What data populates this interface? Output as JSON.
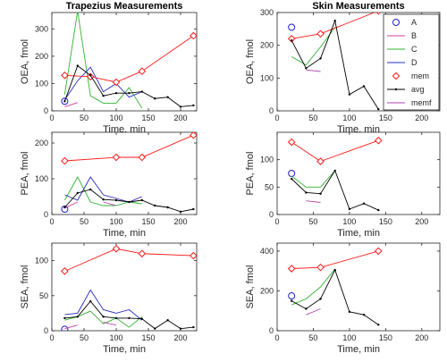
{
  "colors": {
    "A": "#1f1fcc",
    "B": "#cc3d99",
    "C": "#33b033",
    "D": "#2a2abf",
    "mem": "#ff1a1a",
    "avg": "#000000",
    "memf": "#b344b3",
    "axis": "#262626"
  },
  "legend": {
    "placement": "top-right of Skin OEA panel",
    "entries": [
      "A",
      "B",
      "C",
      "D",
      "mem",
      "avg",
      "memf"
    ]
  },
  "chart_data": [
    {
      "id": "trap-oea",
      "type": "line",
      "title": "Trapezius Measurements",
      "xlabel": "Time, min",
      "ylabel": "OEA, fmol",
      "xlim": [
        0,
        225
      ],
      "xticks": [
        0,
        50,
        100,
        150,
        200
      ],
      "ylim": [
        0,
        360
      ],
      "yticks": [
        0,
        100,
        200,
        300
      ],
      "series": [
        {
          "name": "A",
          "style": "circle",
          "x": [
            20
          ],
          "y": [
            35
          ]
        },
        {
          "name": "B",
          "style": "line",
          "x": [
            20,
            40
          ],
          "y": [
            15,
            30
          ]
        },
        {
          "name": "C",
          "style": "line",
          "x": [
            20,
            40,
            60,
            80,
            100,
            120,
            140
          ],
          "y": [
            60,
            365,
            55,
            28,
            28,
            85,
            10
          ]
        },
        {
          "name": "D",
          "style": "line",
          "x": [
            20,
            40,
            60,
            80,
            100,
            120,
            140
          ],
          "y": [
            40,
            110,
            160,
            70,
            100,
            50,
            70
          ]
        },
        {
          "name": "mem",
          "style": "diamond-line",
          "x": [
            20,
            60,
            100,
            140,
            220
          ],
          "y": [
            130,
            125,
            105,
            145,
            275
          ]
        },
        {
          "name": "avg",
          "style": "dot-line",
          "x": [
            20,
            40,
            60,
            80,
            100,
            120,
            140,
            160,
            180,
            200,
            220
          ],
          "y": [
            35,
            165,
            130,
            55,
            65,
            65,
            70,
            45,
            50,
            15,
            20
          ]
        },
        {
          "name": "memf",
          "style": "line",
          "x": [],
          "y": []
        }
      ]
    },
    {
      "id": "skin-oea",
      "type": "line",
      "title": "Skin Measurements",
      "xlabel": "Time, min",
      "ylabel": "OEA, fmol",
      "xlim": [
        0,
        225
      ],
      "xticks": [
        0,
        50,
        100,
        150,
        200
      ],
      "ylim": [
        0,
        300
      ],
      "yticks": [
        0,
        100,
        200,
        300
      ],
      "series": [
        {
          "name": "A",
          "style": "circle",
          "x": [
            20
          ],
          "y": [
            255
          ]
        },
        {
          "name": "B",
          "style": "line",
          "x": [],
          "y": []
        },
        {
          "name": "C",
          "style": "line",
          "x": [
            20,
            40,
            60,
            80
          ],
          "y": [
            165,
            140,
            195,
            255
          ]
        },
        {
          "name": "D",
          "style": "line",
          "x": [],
          "y": []
        },
        {
          "name": "mem",
          "style": "diamond-line",
          "x": [
            20,
            60,
            140
          ],
          "y": [
            220,
            235,
            305
          ]
        },
        {
          "name": "avg",
          "style": "dot-line",
          "x": [
            20,
            40,
            60,
            80,
            100,
            120,
            140
          ],
          "y": [
            215,
            130,
            160,
            275,
            50,
            75,
            5
          ]
        },
        {
          "name": "memf",
          "style": "line",
          "x": [
            40,
            60
          ],
          "y": [
            125,
            120
          ]
        }
      ]
    },
    {
      "id": "trap-pea",
      "type": "line",
      "xlabel": "Time, min",
      "ylabel": "PEA, fmol",
      "xlim": [
        0,
        225
      ],
      "xticks": [
        0,
        50,
        100,
        150,
        200
      ],
      "ylim": [
        0,
        230
      ],
      "yticks": [
        0,
        100,
        200
      ],
      "series": [
        {
          "name": "A",
          "style": "circle",
          "x": [
            20
          ],
          "y": [
            15
          ]
        },
        {
          "name": "B",
          "style": "line",
          "x": [
            20,
            40
          ],
          "y": [
            18,
            35
          ]
        },
        {
          "name": "C",
          "style": "line",
          "x": [
            20,
            40,
            60,
            80,
            100,
            120,
            140
          ],
          "y": [
            40,
            105,
            35,
            25,
            25,
            35,
            30
          ]
        },
        {
          "name": "D",
          "style": "line",
          "x": [
            20,
            40,
            60,
            80,
            100,
            120,
            140
          ],
          "y": [
            55,
            40,
            105,
            55,
            45,
            35,
            50
          ]
        },
        {
          "name": "mem",
          "style": "diamond-line",
          "x": [
            20,
            100,
            140,
            220
          ],
          "y": [
            150,
            160,
            160,
            222
          ]
        },
        {
          "name": "avg",
          "style": "dot-line",
          "x": [
            20,
            40,
            60,
            80,
            100,
            120,
            140,
            160,
            180,
            200,
            220
          ],
          "y": [
            20,
            60,
            70,
            42,
            40,
            35,
            40,
            25,
            20,
            8,
            15
          ]
        },
        {
          "name": "memf",
          "style": "line",
          "x": [
            80,
            100
          ],
          "y": [
            35,
            25
          ]
        }
      ]
    },
    {
      "id": "skin-pea",
      "type": "line",
      "xlabel": "Time, min",
      "ylabel": "PEA, fmol",
      "xlim": [
        0,
        225
      ],
      "xticks": [
        0,
        50,
        100,
        150,
        200
      ],
      "ylim": [
        0,
        150
      ],
      "yticks": [
        0,
        50,
        100
      ],
      "series": [
        {
          "name": "A",
          "style": "circle",
          "x": [
            20
          ],
          "y": [
            75
          ]
        },
        {
          "name": "B",
          "style": "line",
          "x": [],
          "y": []
        },
        {
          "name": "C",
          "style": "line",
          "x": [
            20,
            40,
            60,
            80
          ],
          "y": [
            70,
            50,
            50,
            80
          ]
        },
        {
          "name": "D",
          "style": "line",
          "x": [],
          "y": []
        },
        {
          "name": "mem",
          "style": "diamond-line",
          "x": [
            20,
            60,
            140
          ],
          "y": [
            132,
            97,
            135
          ]
        },
        {
          "name": "avg",
          "style": "dot-line",
          "x": [
            20,
            40,
            60,
            80,
            100,
            120,
            140
          ],
          "y": [
            65,
            40,
            38,
            80,
            10,
            20,
            8
          ]
        },
        {
          "name": "memf",
          "style": "line",
          "x": [
            40,
            60
          ],
          "y": [
            25,
            22
          ]
        }
      ]
    },
    {
      "id": "trap-sea",
      "type": "line",
      "xlabel": "Time, min",
      "ylabel": "SEA, fmol",
      "xlim": [
        0,
        225
      ],
      "xticks": [
        0,
        50,
        100,
        150,
        200
      ],
      "ylim": [
        0,
        125
      ],
      "yticks": [
        0,
        50,
        100
      ],
      "series": [
        {
          "name": "A",
          "style": "circle",
          "x": [
            20
          ],
          "y": [
            2
          ]
        },
        {
          "name": "B",
          "style": "line",
          "x": [
            20,
            40
          ],
          "y": [
            3,
            8
          ]
        },
        {
          "name": "C",
          "style": "line",
          "x": [
            20,
            40,
            60,
            80,
            100,
            120,
            140
          ],
          "y": [
            15,
            20,
            28,
            10,
            18,
            5,
            20
          ]
        },
        {
          "name": "D",
          "style": "line",
          "x": [
            20,
            40,
            60,
            80,
            100,
            120,
            140
          ],
          "y": [
            23,
            25,
            58,
            30,
            25,
            30,
            15
          ]
        },
        {
          "name": "mem",
          "style": "diamond-line",
          "x": [
            20,
            100,
            140,
            220
          ],
          "y": [
            85,
            117,
            110,
            107
          ]
        },
        {
          "name": "avg",
          "style": "dot-line",
          "x": [
            20,
            40,
            60,
            80,
            100,
            120,
            140,
            160,
            180,
            200,
            220
          ],
          "y": [
            18,
            20,
            42,
            20,
            18,
            18,
            17,
            3,
            15,
            3,
            5
          ]
        },
        {
          "name": "memf",
          "style": "line",
          "x": [
            80,
            100
          ],
          "y": [
            12,
            8
          ]
        }
      ]
    },
    {
      "id": "skin-sea",
      "type": "line",
      "xlabel": "Time, min",
      "ylabel": "SEA, fmol",
      "xlim": [
        0,
        225
      ],
      "xticks": [
        0,
        50,
        100,
        150,
        200
      ],
      "ylim": [
        0,
        440
      ],
      "yticks": [
        0,
        200,
        400
      ],
      "series": [
        {
          "name": "A",
          "style": "circle",
          "x": [
            20
          ],
          "y": [
            175
          ]
        },
        {
          "name": "B",
          "style": "line",
          "x": [],
          "y": []
        },
        {
          "name": "C",
          "style": "line",
          "x": [
            20,
            40,
            60,
            80
          ],
          "y": [
            130,
            160,
            220,
            310
          ]
        },
        {
          "name": "D",
          "style": "line",
          "x": [],
          "y": []
        },
        {
          "name": "mem",
          "style": "diamond-line",
          "x": [
            20,
            60,
            140
          ],
          "y": [
            312,
            318,
            400
          ]
        },
        {
          "name": "avg",
          "style": "dot-line",
          "x": [
            20,
            40,
            60,
            80,
            100,
            120,
            140
          ],
          "y": [
            150,
            110,
            160,
            305,
            95,
            80,
            30
          ]
        },
        {
          "name": "memf",
          "style": "line",
          "x": [
            40,
            60
          ],
          "y": [
            80,
            110
          ]
        }
      ]
    }
  ]
}
